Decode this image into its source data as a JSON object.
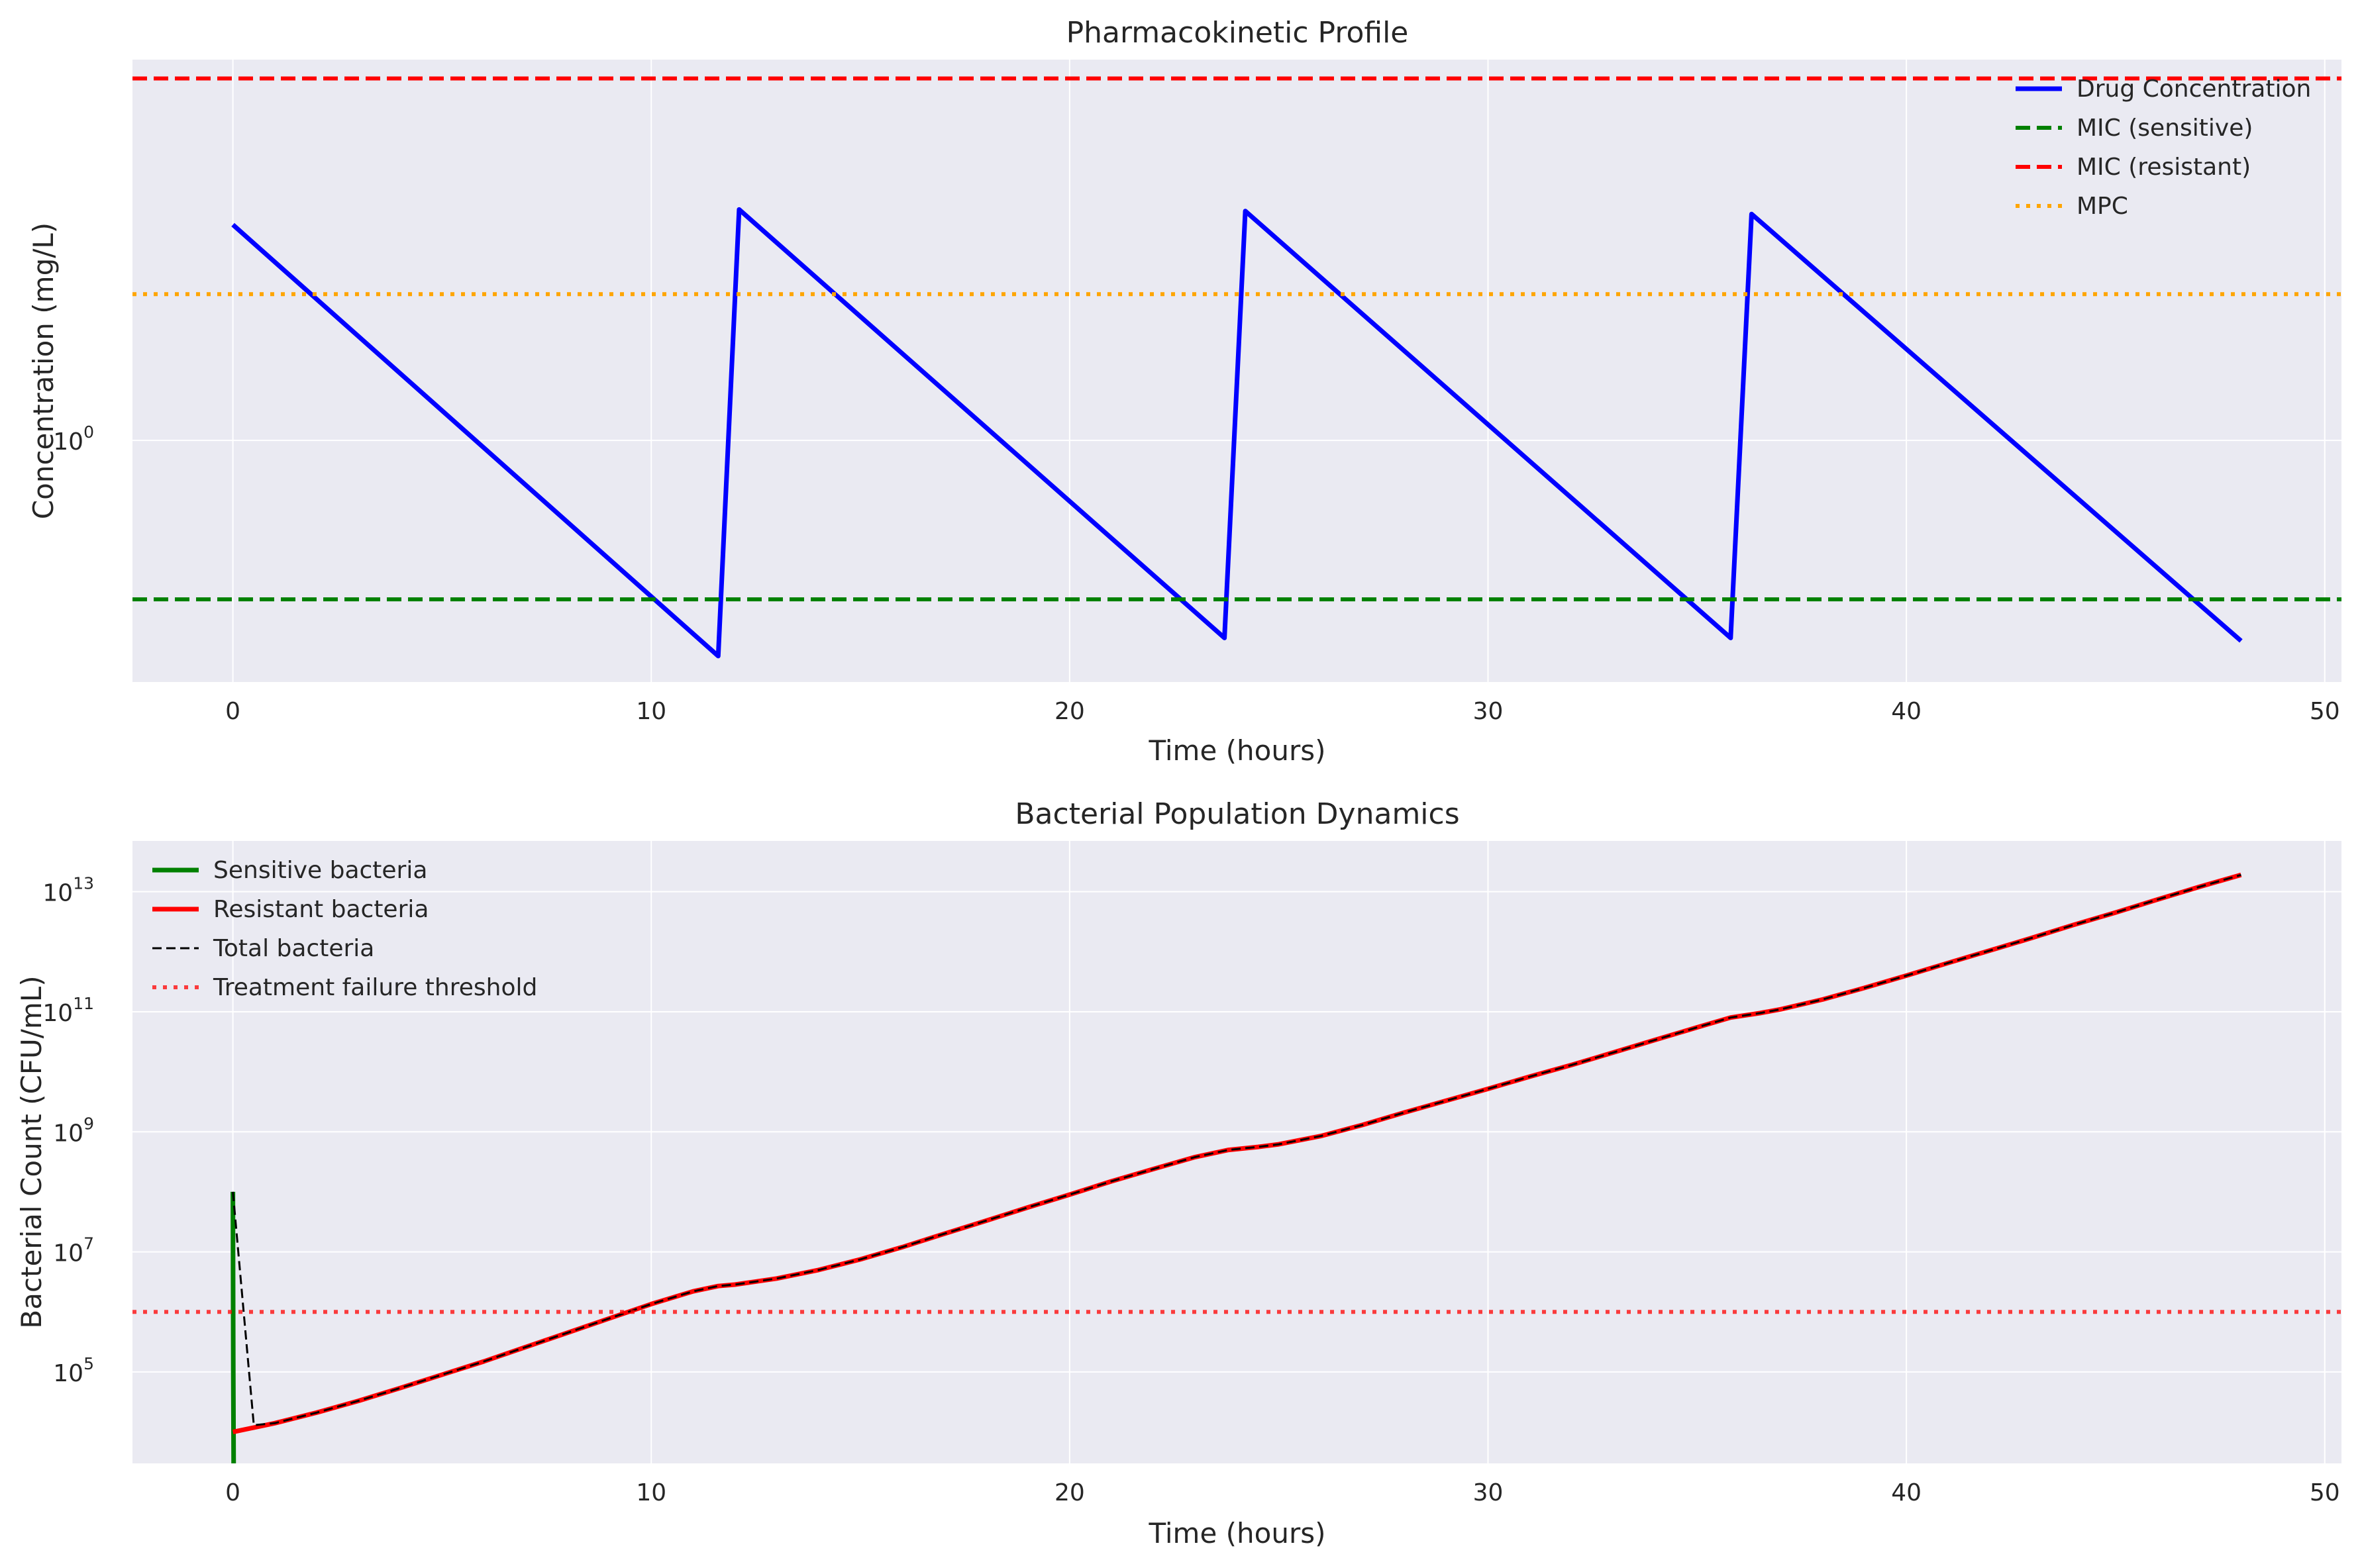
{
  "chart_data": [
    {
      "type": "line",
      "title": "Pharmacokinetic Profile",
      "xlabel": "Time (hours)",
      "ylabel": "Concentration (mg/L)",
      "yscale": "log",
      "xlim": [
        -2.4,
        50.4
      ],
      "ylim": [
        0.46,
        3.4
      ],
      "xticks": [
        0,
        10,
        20,
        30,
        40,
        50
      ],
      "yticks": [
        {
          "base": "10",
          "exp": "0",
          "value": 1
        }
      ],
      "grid": true,
      "legend_position": "upper right",
      "series": [
        {
          "name": "Drug Concentration",
          "color": "#0000ff",
          "style": "solid",
          "x": [
            0,
            11.6,
            12.1,
            23.7,
            24.2,
            35.8,
            36.3,
            48
          ],
          "y": [
            2.0,
            0.5,
            2.1,
            0.53,
            2.09,
            0.53,
            2.07,
            0.525
          ]
        },
        {
          "name": "MIC (sensitive)",
          "color": "#008000",
          "style": "dashed",
          "x": [
            -2.4,
            50.4
          ],
          "y": [
            0.6,
            0.6
          ]
        },
        {
          "name": "MIC (resistant)",
          "color": "#ff0000",
          "style": "dashed",
          "x": [
            -2.4,
            50.4
          ],
          "y": [
            3.2,
            3.2
          ]
        },
        {
          "name": "MPC",
          "color": "#ffa500",
          "style": "dotted",
          "x": [
            -2.4,
            50.4
          ],
          "y": [
            1.6,
            1.6
          ]
        }
      ]
    },
    {
      "type": "line",
      "title": "Bacterial Population Dynamics",
      "xlabel": "Time (hours)",
      "ylabel": "Bacterial Count (CFU/mL)",
      "yscale": "log",
      "xlim": [
        -2.4,
        50.4
      ],
      "ylim": [
        3000,
        70000000000000
      ],
      "xticks": [
        0,
        10,
        20,
        30,
        40,
        50
      ],
      "yticks": [
        {
          "base": "10",
          "exp": "5",
          "value": 100000
        },
        {
          "base": "10",
          "exp": "7",
          "value": 10000000
        },
        {
          "base": "10",
          "exp": "9",
          "value": 1000000000
        },
        {
          "base": "10",
          "exp": "11",
          "value": 100000000000
        },
        {
          "base": "10",
          "exp": "13",
          "value": 10000000000000
        }
      ],
      "grid": true,
      "legend_position": "upper left",
      "series": [
        {
          "name": "Sensitive bacteria",
          "color": "#008000",
          "style": "solid",
          "x": [
            0,
            0.01,
            0.02
          ],
          "y": [
            100000000,
            100000,
            1000
          ]
        },
        {
          "name": "Resistant bacteria",
          "color": "#ff0000",
          "style": "solid",
          "x": [
            0,
            1,
            2,
            3,
            4,
            5,
            6,
            7,
            8,
            9,
            10,
            11,
            11.6,
            12,
            13,
            14,
            15,
            16,
            17,
            18,
            19,
            20,
            21,
            22,
            23,
            23.8,
            24.5,
            25,
            26,
            27,
            28,
            29,
            30,
            31,
            32,
            33,
            34,
            35,
            35.8,
            36.5,
            37,
            38,
            39,
            40,
            41,
            42,
            43,
            44,
            45,
            46,
            47,
            48
          ],
          "y": [
            10000,
            14000,
            21000,
            33000,
            54000,
            90000,
            150000,
            260000,
            450000,
            780000,
            1350000,
            2200000,
            2700000,
            2850000,
            3600000,
            5000000,
            7500000,
            12000000,
            20000000,
            33000000,
            55000000,
            90000000,
            150000000,
            240000000,
            380000000,
            500000000,
            560000000,
            620000000,
            850000000,
            1300000000,
            2100000000,
            3300000000,
            5200000000,
            8300000000,
            13000000000,
            21000000000,
            34000000000,
            55000000000,
            80000000000,
            95000000000,
            110000000000,
            160000000000,
            250000000000,
            400000000000,
            650000000000,
            1050000000000,
            1700000000000,
            2800000000000,
            4500000000000,
            7400000000000,
            12000000000000,
            19000000000000
          ]
        },
        {
          "name": "Total bacteria",
          "color": "#000000",
          "style": "dashed-thin",
          "x": [
            0,
            0.5,
            1,
            2,
            3,
            4,
            5,
            6,
            7,
            8,
            9,
            10,
            11,
            11.6,
            12,
            13,
            14,
            15,
            16,
            17,
            18,
            19,
            20,
            21,
            22,
            23,
            23.8,
            24.5,
            25,
            26,
            27,
            28,
            29,
            30,
            31,
            32,
            33,
            34,
            35,
            35.8,
            36.5,
            37,
            38,
            39,
            40,
            41,
            42,
            43,
            44,
            45,
            46,
            47,
            48
          ],
          "y": [
            100000000,
            13000,
            14000,
            21000,
            33000,
            54000,
            90000,
            150000,
            260000,
            450000,
            780000,
            1350000,
            2200000,
            2700000,
            2850000,
            3600000,
            5000000,
            7500000,
            12000000,
            20000000,
            33000000,
            55000000,
            90000000,
            150000000,
            240000000,
            380000000,
            500000000,
            560000000,
            620000000,
            850000000,
            1300000000,
            2100000000,
            3300000000,
            5200000000,
            8300000000,
            13000000000,
            21000000000,
            34000000000,
            55000000000,
            80000000000,
            95000000000,
            110000000000,
            160000000000,
            250000000000,
            400000000000,
            650000000000,
            1050000000000,
            1700000000000,
            2800000000000,
            4500000000000,
            7400000000000,
            12000000000000,
            19000000000000
          ]
        },
        {
          "name": "Treatment failure threshold",
          "color": "#ff0000",
          "style": "dotted-faded",
          "x": [
            -2.4,
            50.4
          ],
          "y": [
            1000000,
            1000000
          ]
        }
      ]
    }
  ]
}
